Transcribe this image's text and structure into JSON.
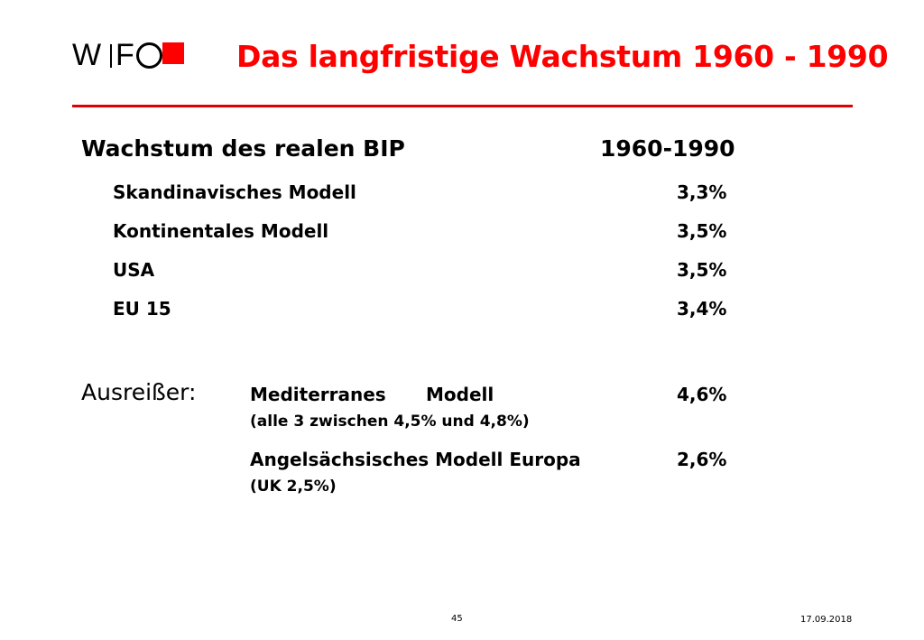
{
  "logo": {
    "w": "W",
    "f": "F",
    "colors": {
      "square": "#ff0000"
    }
  },
  "title": "Das langfristige Wachstum 1960 - 1990",
  "accent_color": "#ff0000",
  "heading": {
    "label": "Wachstum des realen BIP",
    "period": "1960-1990"
  },
  "rows": [
    {
      "label": "Skandinavisches Modell",
      "value": "3,3%"
    },
    {
      "label": "Kontinentales Modell",
      "value": "3,5%"
    },
    {
      "label": "USA",
      "value": "3,5%"
    },
    {
      "label": "EU 15",
      "value": "3,4%"
    }
  ],
  "outliers": {
    "label": "Ausreißer:",
    "items": [
      {
        "name_a": "Mediterranes",
        "name_b": "Modell",
        "value": "4,6%",
        "note": "(alle 3 zwischen 4,5% und 4,8%)"
      },
      {
        "name": "Angelsächsisches Modell Europa",
        "value": "2,6%",
        "note": "(UK 2,5%)"
      }
    ]
  },
  "footer": {
    "page": "45",
    "date": "17.09.2018"
  }
}
